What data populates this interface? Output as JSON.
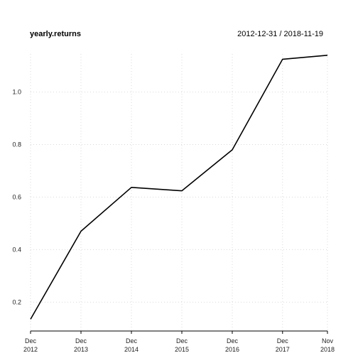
{
  "chart_data": {
    "type": "line",
    "title": "yearly.returns",
    "date_range": "2012-12-31 / 2018-11-19",
    "x": [
      "2012-12-31",
      "2013-12-31",
      "2014-12-31",
      "2015-12-31",
      "2016-12-30",
      "2017-12-29",
      "2018-11-19"
    ],
    "x_tick_labels": [
      {
        "month": "Dec",
        "year": "2012"
      },
      {
        "month": "Dec",
        "year": "2013"
      },
      {
        "month": "Dec",
        "year": "2014"
      },
      {
        "month": "Dec",
        "year": "2015"
      },
      {
        "month": "Dec",
        "year": "2016"
      },
      {
        "month": "Dec",
        "year": "2017"
      },
      {
        "month": "Nov",
        "year": "2018"
      }
    ],
    "series": [
      {
        "values": [
          0.135,
          0.47,
          0.637,
          0.624,
          0.78,
          1.125,
          1.14
        ]
      }
    ],
    "y_ticks": [
      "0.2",
      "0.4",
      "0.6",
      "0.8",
      "1.0"
    ],
    "ylim": [
      0.09,
      1.145
    ],
    "grid": true,
    "line_color": "#000000",
    "xlabel": "",
    "ylabel": ""
  }
}
